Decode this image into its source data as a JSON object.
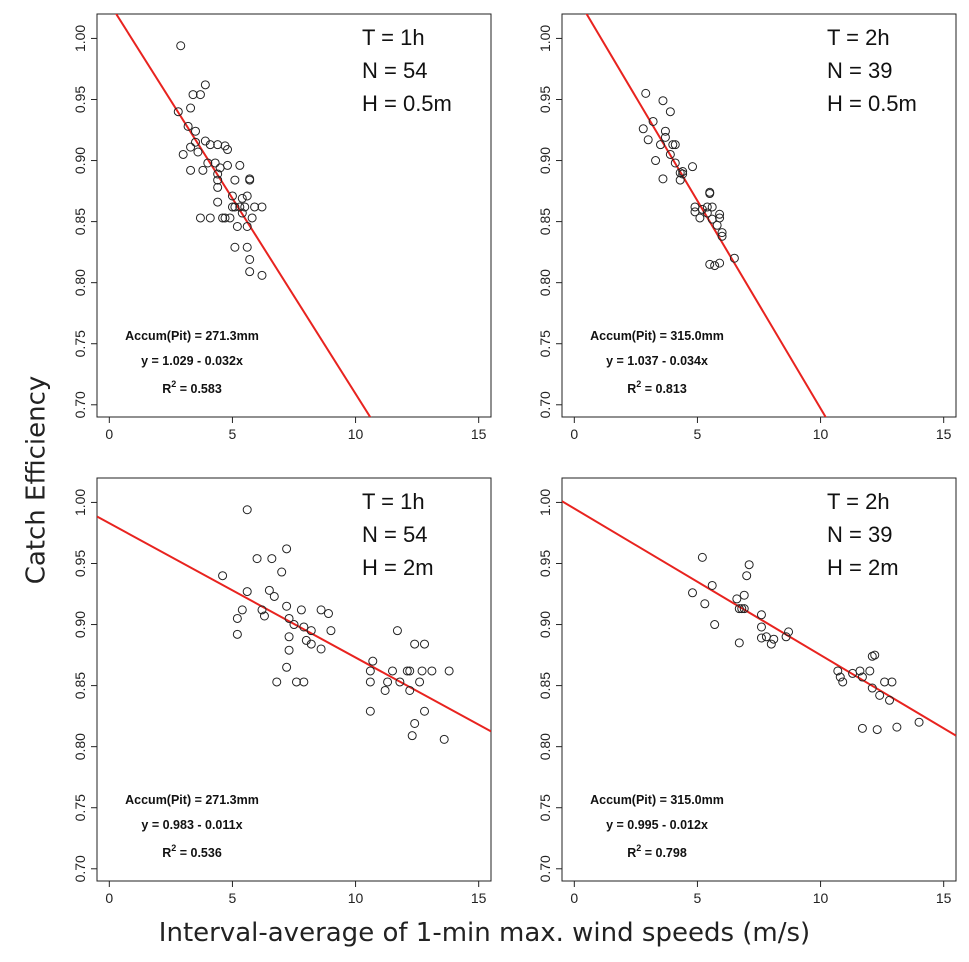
{
  "figure": {
    "ylabel": "Catch Efficiency",
    "xlabel": "Interval-average of 1-min max. wind speeds (m/s)"
  },
  "chart_data": [
    {
      "type": "scatter",
      "panel": "top-left",
      "xlim": [
        -0.5,
        15.5
      ],
      "ylim": [
        0.69,
        1.02
      ],
      "xticks": [
        "0",
        "5",
        "10",
        "15"
      ],
      "yticks": [
        "0.70",
        "0.75",
        "0.80",
        "0.85",
        "0.90",
        "0.95",
        "1.00"
      ],
      "xtick_values": [
        0,
        5,
        10,
        15
      ],
      "ytick_values": [
        0.7,
        0.75,
        0.8,
        0.85,
        0.9,
        0.95,
        1.0
      ],
      "stats": [
        "T = 1h",
        "N = 54",
        "H = 0.5m"
      ],
      "accum": "Accum(Pit) = 271.3mm",
      "equation": "y = 1.029 - 0.032x",
      "r2_label": "R",
      "r2_value": " = 0.583",
      "fit": {
        "intercept": 1.029,
        "slope": -0.032
      },
      "points": [
        [
          2.9,
          0.994
        ],
        [
          2.8,
          0.94
        ],
        [
          3.2,
          0.928
        ],
        [
          3.4,
          0.954
        ],
        [
          3.7,
          0.954
        ],
        [
          3.9,
          0.962
        ],
        [
          3.3,
          0.943
        ],
        [
          3.5,
          0.924
        ],
        [
          3.0,
          0.905
        ],
        [
          3.3,
          0.911
        ],
        [
          3.6,
          0.907
        ],
        [
          3.9,
          0.916
        ],
        [
          4.1,
          0.913
        ],
        [
          4.4,
          0.913
        ],
        [
          4.7,
          0.912
        ],
        [
          4.8,
          0.909
        ],
        [
          4.0,
          0.898
        ],
        [
          4.3,
          0.898
        ],
        [
          4.5,
          0.894
        ],
        [
          4.8,
          0.896
        ],
        [
          5.3,
          0.896
        ],
        [
          3.3,
          0.892
        ],
        [
          3.8,
          0.892
        ],
        [
          4.4,
          0.889
        ],
        [
          4.4,
          0.884
        ],
        [
          5.1,
          0.884
        ],
        [
          5.7,
          0.885
        ],
        [
          5.7,
          0.884
        ],
        [
          4.4,
          0.878
        ],
        [
          5.0,
          0.871
        ],
        [
          5.6,
          0.871
        ],
        [
          4.4,
          0.866
        ],
        [
          5.1,
          0.862
        ],
        [
          5.3,
          0.862
        ],
        [
          5.5,
          0.862
        ],
        [
          5.9,
          0.862
        ],
        [
          6.2,
          0.862
        ],
        [
          5.4,
          0.857
        ],
        [
          3.7,
          0.853
        ],
        [
          4.1,
          0.853
        ],
        [
          4.7,
          0.853
        ],
        [
          4.9,
          0.853
        ],
        [
          5.8,
          0.853
        ],
        [
          5.2,
          0.846
        ],
        [
          5.6,
          0.846
        ],
        [
          5.1,
          0.829
        ],
        [
          5.6,
          0.829
        ],
        [
          5.7,
          0.819
        ],
        [
          5.7,
          0.809
        ],
        [
          6.2,
          0.806
        ],
        [
          5.0,
          0.862
        ],
        [
          5.4,
          0.869
        ],
        [
          4.6,
          0.853
        ],
        [
          3.5,
          0.915
        ]
      ]
    },
    {
      "type": "scatter",
      "panel": "top-right",
      "xlim": [
        -0.5,
        15.5
      ],
      "ylim": [
        0.69,
        1.02
      ],
      "xticks": [
        "0",
        "5",
        "10",
        "15"
      ],
      "yticks": [
        "0.70",
        "0.75",
        "0.80",
        "0.85",
        "0.90",
        "0.95",
        "1.00"
      ],
      "xtick_values": [
        0,
        5,
        10,
        15
      ],
      "ytick_values": [
        0.7,
        0.75,
        0.8,
        0.85,
        0.9,
        0.95,
        1.0
      ],
      "stats": [
        "T = 2h",
        "N = 39",
        "H = 0.5m"
      ],
      "accum": "Accum(Pit) = 315.0mm",
      "equation": "y = 1.037 - 0.034x",
      "r2_label": "R",
      "r2_value": " = 0.813",
      "fit": {
        "intercept": 1.037,
        "slope": -0.034
      },
      "points": [
        [
          2.9,
          0.955
        ],
        [
          3.6,
          0.949
        ],
        [
          2.8,
          0.926
        ],
        [
          3.2,
          0.932
        ],
        [
          3.7,
          0.924
        ],
        [
          3.7,
          0.919
        ],
        [
          3.9,
          0.94
        ],
        [
          3.0,
          0.917
        ],
        [
          3.5,
          0.913
        ],
        [
          4.0,
          0.913
        ],
        [
          4.1,
          0.913
        ],
        [
          3.9,
          0.905
        ],
        [
          3.3,
          0.9
        ],
        [
          4.1,
          0.898
        ],
        [
          4.3,
          0.89
        ],
        [
          4.4,
          0.891
        ],
        [
          4.3,
          0.884
        ],
        [
          4.8,
          0.895
        ],
        [
          3.6,
          0.885
        ],
        [
          5.5,
          0.874
        ],
        [
          5.5,
          0.873
        ],
        [
          5.4,
          0.862
        ],
        [
          5.6,
          0.862
        ],
        [
          5.9,
          0.856
        ],
        [
          5.4,
          0.857
        ],
        [
          5.1,
          0.853
        ],
        [
          5.6,
          0.852
        ],
        [
          5.9,
          0.853
        ],
        [
          5.8,
          0.847
        ],
        [
          6.0,
          0.841
        ],
        [
          6.0,
          0.838
        ],
        [
          4.9,
          0.862
        ],
        [
          4.9,
          0.858
        ],
        [
          5.2,
          0.86
        ],
        [
          5.5,
          0.815
        ],
        [
          5.7,
          0.814
        ],
        [
          5.9,
          0.816
        ],
        [
          6.5,
          0.82
        ],
        [
          4.4,
          0.889
        ]
      ]
    },
    {
      "type": "scatter",
      "panel": "bottom-left",
      "xlim": [
        -0.5,
        15.5
      ],
      "ylim": [
        0.69,
        1.02
      ],
      "xticks": [
        "0",
        "5",
        "10",
        "15"
      ],
      "yticks": [
        "0.70",
        "0.75",
        "0.80",
        "0.85",
        "0.90",
        "0.95",
        "1.00"
      ],
      "xtick_values": [
        0,
        5,
        10,
        15
      ],
      "ytick_values": [
        0.7,
        0.75,
        0.8,
        0.85,
        0.9,
        0.95,
        1.0
      ],
      "stats": [
        "T = 1h",
        "N = 54",
        "H = 2m"
      ],
      "accum": "Accum(Pit) = 271.3mm",
      "equation": "y = 0.983 - 0.011x",
      "r2_label": "R",
      "r2_value": " = 0.536",
      "fit": {
        "intercept": 0.983,
        "slope": -0.011
      },
      "points": [
        [
          5.6,
          0.994
        ],
        [
          7.2,
          0.962
        ],
        [
          6.0,
          0.954
        ],
        [
          6.6,
          0.954
        ],
        [
          7.0,
          0.943
        ],
        [
          4.6,
          0.94
        ],
        [
          5.6,
          0.927
        ],
        [
          6.5,
          0.928
        ],
        [
          6.7,
          0.923
        ],
        [
          5.4,
          0.912
        ],
        [
          6.2,
          0.912
        ],
        [
          7.2,
          0.915
        ],
        [
          7.8,
          0.912
        ],
        [
          8.6,
          0.912
        ],
        [
          8.9,
          0.909
        ],
        [
          5.2,
          0.905
        ],
        [
          6.3,
          0.907
        ],
        [
          7.3,
          0.905
        ],
        [
          7.5,
          0.9
        ],
        [
          8.0,
          0.887
        ],
        [
          8.2,
          0.884
        ],
        [
          9.0,
          0.895
        ],
        [
          5.2,
          0.892
        ],
        [
          7.3,
          0.89
        ],
        [
          7.9,
          0.898
        ],
        [
          7.3,
          0.879
        ],
        [
          8.6,
          0.88
        ],
        [
          10.7,
          0.87
        ],
        [
          11.7,
          0.895
        ],
        [
          7.2,
          0.865
        ],
        [
          10.6,
          0.862
        ],
        [
          11.5,
          0.862
        ],
        [
          12.1,
          0.862
        ],
        [
          12.2,
          0.862
        ],
        [
          12.7,
          0.862
        ],
        [
          13.1,
          0.862
        ],
        [
          13.8,
          0.862
        ],
        [
          10.6,
          0.853
        ],
        [
          11.3,
          0.853
        ],
        [
          11.8,
          0.853
        ],
        [
          12.6,
          0.853
        ],
        [
          6.8,
          0.853
        ],
        [
          7.6,
          0.853
        ],
        [
          7.9,
          0.853
        ],
        [
          11.2,
          0.846
        ],
        [
          12.2,
          0.846
        ],
        [
          12.4,
          0.884
        ],
        [
          12.8,
          0.884
        ],
        [
          10.6,
          0.829
        ],
        [
          12.8,
          0.829
        ],
        [
          12.4,
          0.819
        ],
        [
          12.3,
          0.809
        ],
        [
          13.6,
          0.806
        ],
        [
          8.2,
          0.895
        ]
      ]
    },
    {
      "type": "scatter",
      "panel": "bottom-right",
      "xlim": [
        -0.5,
        15.5
      ],
      "ylim": [
        0.69,
        1.02
      ],
      "xticks": [
        "0",
        "5",
        "10",
        "15"
      ],
      "yticks": [
        "0.70",
        "0.75",
        "0.80",
        "0.85",
        "0.90",
        "0.95",
        "1.00"
      ],
      "xtick_values": [
        0,
        5,
        10,
        15
      ],
      "ytick_values": [
        0.7,
        0.75,
        0.8,
        0.85,
        0.9,
        0.95,
        1.0
      ],
      "stats": [
        "T = 2h",
        "N = 39",
        "H = 2m"
      ],
      "accum": "Accum(Pit) = 315.0mm",
      "equation": "y = 0.995 - 0.012x",
      "r2_label": "R",
      "r2_value": " = 0.798",
      "fit": {
        "intercept": 0.995,
        "slope": -0.012
      },
      "points": [
        [
          5.2,
          0.955
        ],
        [
          7.1,
          0.949
        ],
        [
          4.8,
          0.926
        ],
        [
          5.6,
          0.932
        ],
        [
          6.9,
          0.924
        ],
        [
          6.6,
          0.921
        ],
        [
          7.0,
          0.94
        ],
        [
          5.3,
          0.917
        ],
        [
          6.8,
          0.913
        ],
        [
          6.9,
          0.913
        ],
        [
          7.6,
          0.908
        ],
        [
          5.7,
          0.9
        ],
        [
          7.6,
          0.898
        ],
        [
          7.8,
          0.89
        ],
        [
          8.6,
          0.89
        ],
        [
          8.7,
          0.894
        ],
        [
          8.0,
          0.884
        ],
        [
          6.7,
          0.885
        ],
        [
          7.6,
          0.889
        ],
        [
          12.1,
          0.874
        ],
        [
          12.2,
          0.875
        ],
        [
          10.7,
          0.862
        ],
        [
          11.6,
          0.862
        ],
        [
          12.0,
          0.862
        ],
        [
          10.8,
          0.857
        ],
        [
          11.7,
          0.857
        ],
        [
          10.9,
          0.853
        ],
        [
          12.6,
          0.853
        ],
        [
          12.9,
          0.853
        ],
        [
          12.1,
          0.848
        ],
        [
          12.4,
          0.842
        ],
        [
          12.8,
          0.838
        ],
        [
          11.7,
          0.815
        ],
        [
          12.3,
          0.814
        ],
        [
          13.1,
          0.816
        ],
        [
          14.0,
          0.82
        ],
        [
          6.7,
          0.913
        ],
        [
          8.1,
          0.888
        ],
        [
          11.3,
          0.86
        ]
      ]
    }
  ]
}
